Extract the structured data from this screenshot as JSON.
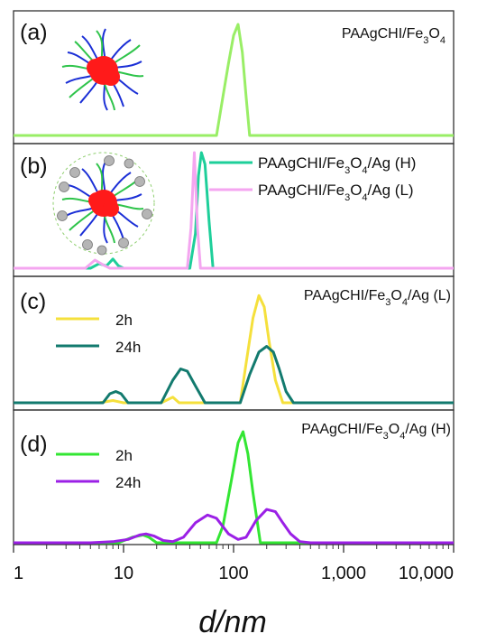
{
  "chart_data": [
    {
      "type": "line",
      "panel_label": "(a)",
      "title": "PAAgCHI/Fe3O4",
      "title_parts": [
        "PAAgCHI/Fe",
        "3",
        "O",
        "4",
        ""
      ],
      "legend": "none",
      "series": [
        {
          "color": "#99ee66",
          "x": [
            1,
            70,
            80,
            90,
            100,
            110,
            120,
            130,
            140,
            10000
          ],
          "y": [
            0,
            0,
            0.35,
            0.65,
            0.9,
            1.0,
            0.75,
            0.35,
            0,
            0
          ]
        }
      ]
    },
    {
      "type": "line",
      "panel_label": "(b)",
      "legend": "top-right",
      "series": [
        {
          "name": "PAAgCHI/Fe3O4/Ag (H)",
          "name_parts": [
            "PAAgCHI/Fe",
            "3",
            "O",
            "4",
            "/Ag (H)"
          ],
          "color": "#1ecf9a",
          "x": [
            1,
            5,
            6,
            7,
            8,
            9,
            10,
            40,
            45,
            48,
            51,
            55,
            60,
            65,
            10000
          ],
          "y": [
            0,
            0,
            0.04,
            0.02,
            0.08,
            0.02,
            0,
            0,
            0.3,
            0.8,
            1.0,
            0.9,
            0.4,
            0,
            0
          ]
        },
        {
          "name": "PAAgCHI/Fe3O4/Ag (L)",
          "name_parts": [
            "PAAgCHI/Fe",
            "3",
            "O",
            "4",
            "/Ag (L)"
          ],
          "color": "#f4a6f0",
          "x": [
            1,
            4.5,
            5.5,
            6.5,
            7.5,
            38,
            41,
            44,
            47,
            50,
            10000
          ],
          "y": [
            0,
            0,
            0.07,
            0.03,
            0,
            0,
            0.35,
            1.0,
            0.35,
            0,
            0
          ]
        }
      ]
    },
    {
      "type": "line",
      "panel_label": "(c)",
      "title": "PAAgCHI/Fe3O4/Ag (L)",
      "title_parts": [
        "PAAgCHI/Fe",
        "3",
        "O",
        "4",
        "/Ag (L)"
      ],
      "legend": "top-left",
      "series": [
        {
          "name": "2h",
          "color": "#f5e03c",
          "x": [
            1,
            6,
            8,
            10,
            22,
            28,
            32,
            115,
            130,
            150,
            170,
            190,
            210,
            240,
            280,
            10000
          ],
          "y": [
            0,
            0,
            0.02,
            0,
            0,
            0.05,
            0,
            0,
            0.35,
            0.75,
            0.95,
            0.85,
            0.55,
            0.2,
            0,
            0
          ]
        },
        {
          "name": "24h",
          "color": "#127a6e",
          "x": [
            1,
            6.5,
            7.5,
            8.5,
            9.5,
            11,
            22,
            28,
            33,
            38,
            45,
            55,
            115,
            140,
            170,
            200,
            230,
            260,
            300,
            350,
            10000
          ],
          "y": [
            0,
            0,
            0.08,
            0.1,
            0.08,
            0,
            0,
            0.2,
            0.3,
            0.28,
            0.15,
            0,
            0,
            0.25,
            0.45,
            0.5,
            0.45,
            0.3,
            0.1,
            0,
            0
          ]
        }
      ]
    },
    {
      "type": "line",
      "panel_label": "(d)",
      "title": "PAAgCHI/Fe3O4/Ag (H)",
      "title_parts": [
        "PAAgCHI/Fe",
        "3",
        "O",
        "4",
        "/Ag (H)"
      ],
      "legend": "top-left",
      "xlabel": "d/nm",
      "xscale": "log",
      "xlim": [
        1,
        10000
      ],
      "xticks": [
        1,
        10,
        100,
        1000,
        10000
      ],
      "xtick_labels": [
        "1",
        "10",
        "100",
        "1,000",
        "10,000"
      ],
      "series": [
        {
          "name": "2h",
          "color": "#33e633",
          "x": [
            1,
            9,
            12,
            15,
            17,
            20,
            70,
            80,
            95,
            110,
            122,
            135,
            150,
            175,
            10000
          ],
          "y": [
            0,
            0,
            0.05,
            0.07,
            0.05,
            0,
            0,
            0.15,
            0.55,
            0.9,
            1.0,
            0.8,
            0.45,
            0,
            0
          ]
        },
        {
          "name": "24h",
          "color": "#9b20e6",
          "x": [
            1,
            5,
            8,
            11,
            14,
            16,
            19,
            23,
            28,
            35,
            45,
            58,
            70,
            90,
            110,
            130,
            160,
            200,
            240,
            280,
            330,
            400,
            500,
            10000
          ],
          "y": [
            0,
            0,
            0.01,
            0.03,
            0.07,
            0.08,
            0.06,
            0.02,
            0.01,
            0.05,
            0.18,
            0.25,
            0.22,
            0.08,
            0.03,
            0.05,
            0.2,
            0.3,
            0.28,
            0.18,
            0.08,
            0.01,
            0,
            0
          ]
        }
      ]
    }
  ]
}
